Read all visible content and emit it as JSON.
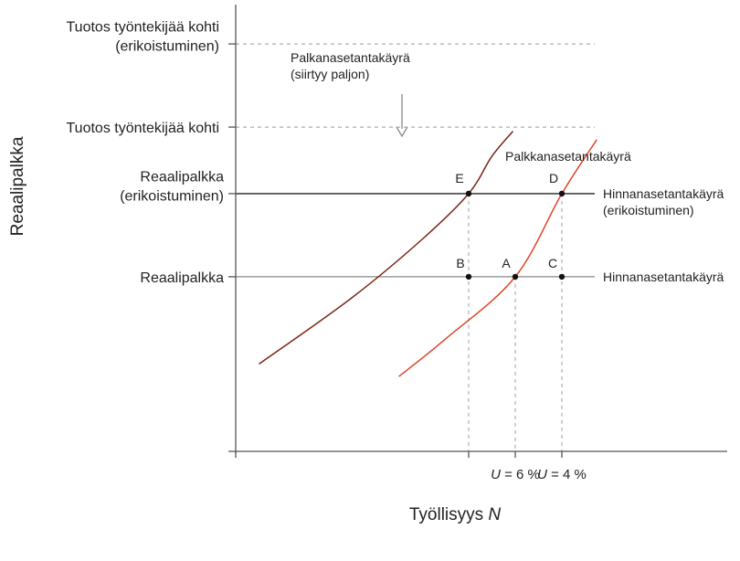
{
  "chart_data": {
    "type": "line",
    "xlabel": "Työllisyys N",
    "xlabel_parts": {
      "main": "Työllisyys ",
      "symbol": "N"
    },
    "ylabel": "Reaalipalkka",
    "x_ticks": [
      {
        "symbol": "U",
        "text": " = 6 %",
        "x": 0.6
      },
      {
        "symbol": "U",
        "text": " = 4 %",
        "x": 0.8
      }
    ],
    "e_x": 0.4,
    "xlim": [
      -0.6,
      2.2
    ],
    "ylim": [
      0,
      5.0
    ],
    "y_levels": [
      {
        "lines": [
          "Tuotos työntekijää kohti",
          "(erikoistuminen)"
        ],
        "y": 4.9,
        "style": "dashed"
      },
      {
        "lines": [
          "Tuotos työntekijää kohti"
        ],
        "y": 3.9,
        "style": "dashed"
      },
      {
        "lines": [
          "Reaalipalkka",
          "(erikoistuminen)"
        ],
        "y": 3.1,
        "style": "solid"
      },
      {
        "lines": [
          "Reaalipalkka"
        ],
        "y": 2.1,
        "style": "solid"
      }
    ],
    "series": [
      {
        "name": "Palkkanasetantakäyrä",
        "color": "#e0442a",
        "points": [
          [
            0.1,
            0.9
          ],
          [
            0.3,
            1.35
          ],
          [
            0.6,
            2.1
          ],
          [
            0.8,
            3.1
          ],
          [
            0.95,
            3.75
          ]
        ]
      },
      {
        "name": "Palkkanasetantakäyrä (siirtyy paljon)",
        "color": "#7a2410",
        "points": [
          [
            -0.5,
            1.05
          ],
          [
            -0.1,
            1.85
          ],
          [
            0.2,
            2.55
          ],
          [
            0.4,
            3.1
          ],
          [
            0.5,
            3.55
          ],
          [
            0.59,
            3.85
          ]
        ]
      }
    ],
    "horizontal_curves": [
      {
        "lines": [
          "Hinnanasetantakäyrä",
          "(erikoistuminen)"
        ],
        "y": 3.1,
        "color": "#222222"
      },
      {
        "lines": [
          "Hinnanasetantakäyrä"
        ],
        "y": 2.1,
        "color": "#888888"
      }
    ],
    "annotations": [
      {
        "lines": [
          "Palkkanasetantakäyrä"
        ],
        "for": "wage_setting_original"
      },
      {
        "lines": [
          "Palkanasetantakäyrä",
          "(siirtyy paljon)"
        ],
        "for": "wage_setting_shifted"
      }
    ],
    "points": [
      {
        "label": "E",
        "x": 0.4,
        "y": 3.1
      },
      {
        "label": "D",
        "x": 0.8,
        "y": 3.1
      },
      {
        "label": "B",
        "x": 0.4,
        "y": 2.1
      },
      {
        "label": "A",
        "x": 0.6,
        "y": 2.1
      },
      {
        "label": "C",
        "x": 0.8,
        "y": 2.1
      }
    ]
  }
}
